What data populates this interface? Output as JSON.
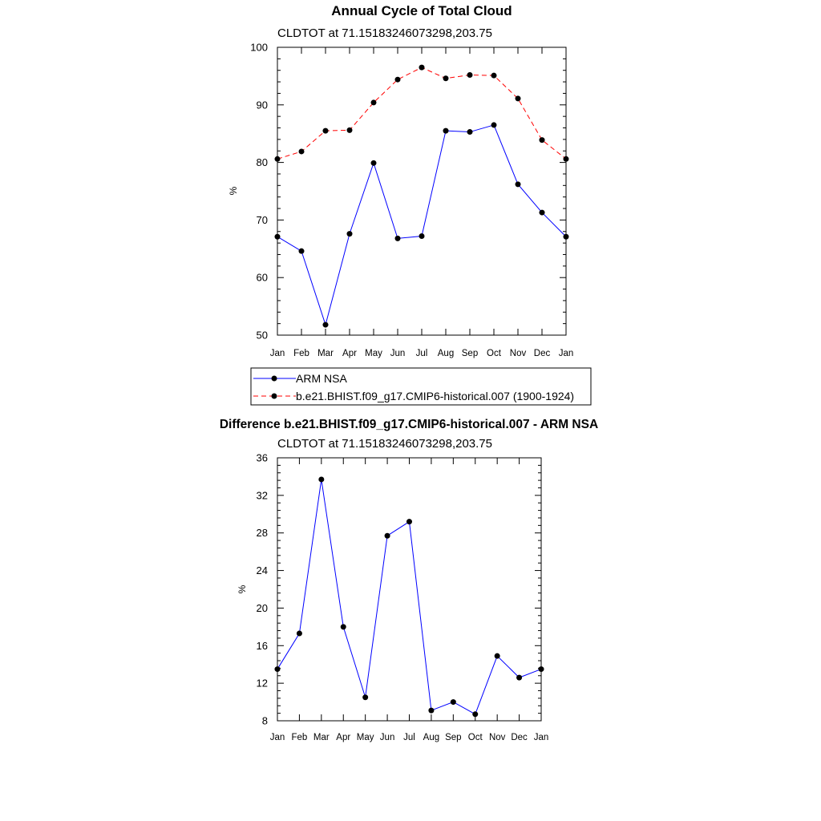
{
  "chart_data": [
    {
      "type": "line",
      "title": "Annual Cycle of Total Cloud",
      "subtitle": "CLDTOT at 71.15183246073298,203.75",
      "xlabel": "",
      "ylabel": "%",
      "categories": [
        "Jan",
        "Feb",
        "Mar",
        "Apr",
        "May",
        "Jun",
        "Jul",
        "Aug",
        "Sep",
        "Oct",
        "Nov",
        "Dec",
        "Jan"
      ],
      "ylim": [
        50,
        100
      ],
      "yticks": [
        50,
        60,
        70,
        80,
        90,
        100
      ],
      "grid": false,
      "legend_placement": "below",
      "series": [
        {
          "name": "ARM NSA",
          "color": "#0000ff",
          "dash": "solid",
          "values": [
            67.1,
            64.6,
            51.8,
            67.6,
            79.9,
            66.8,
            67.2,
            85.5,
            85.3,
            86.5,
            76.2,
            71.3,
            67.1
          ]
        },
        {
          "name": "b.e21.BHIST.f09_g17.CMIP6-historical.007 (1900-1924)",
          "color": "#ff0000",
          "dash": "dashed",
          "values": [
            80.6,
            81.9,
            85.5,
            85.6,
            90.4,
            94.4,
            96.5,
            94.6,
            95.2,
            95.1,
            91.1,
            83.9,
            80.6
          ]
        }
      ]
    },
    {
      "type": "line",
      "title": "Difference b.e21.BHIST.f09_g17.CMIP6-historical.007 - ARM NSA",
      "subtitle": "CLDTOT at 71.15183246073298,203.75",
      "xlabel": "",
      "ylabel": "%",
      "categories": [
        "Jan",
        "Feb",
        "Mar",
        "Apr",
        "May",
        "Jun",
        "Jul",
        "Aug",
        "Sep",
        "Oct",
        "Nov",
        "Dec",
        "Jan"
      ],
      "ylim": [
        8,
        36
      ],
      "yticks": [
        8,
        12,
        16,
        20,
        24,
        28,
        32,
        36
      ],
      "grid": false,
      "series": [
        {
          "name": "Difference",
          "color": "#0000ff",
          "dash": "solid",
          "values": [
            13.5,
            17.3,
            33.7,
            18.0,
            10.5,
            27.7,
            29.2,
            9.1,
            10.0,
            8.7,
            14.9,
            12.6,
            13.5
          ]
        }
      ]
    }
  ]
}
